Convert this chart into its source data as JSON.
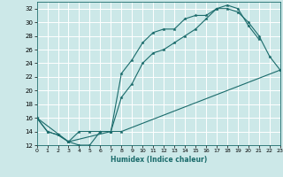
{
  "xlabel": "Humidex (Indice chaleur)",
  "bg_color": "#cce8e8",
  "grid_color": "#ffffff",
  "line_color": "#1a6b6b",
  "xlim": [
    0,
    23
  ],
  "ylim": [
    12,
    33
  ],
  "xticks": [
    0,
    1,
    2,
    3,
    4,
    5,
    6,
    7,
    8,
    9,
    10,
    11,
    12,
    13,
    14,
    15,
    16,
    17,
    18,
    19,
    20,
    21,
    22,
    23
  ],
  "yticks": [
    12,
    14,
    16,
    18,
    20,
    22,
    24,
    26,
    28,
    30,
    32
  ],
  "line1_x": [
    0,
    1,
    2,
    3,
    4,
    5,
    6,
    7,
    8,
    9,
    10,
    11,
    12,
    13,
    14,
    15,
    16,
    17,
    18,
    19,
    20,
    21,
    22,
    23
  ],
  "line1_y": [
    16,
    14,
    13.5,
    12.5,
    14,
    14,
    14,
    14,
    22.5,
    24.5,
    27,
    28.5,
    29,
    29,
    30.5,
    31,
    31,
    32,
    32,
    31.5,
    30,
    28,
    25,
    23
  ],
  "line2_x": [
    0,
    1,
    2,
    3,
    4,
    5,
    6,
    7,
    8,
    9,
    10,
    11,
    12,
    13,
    14,
    15,
    16,
    17,
    18,
    19,
    20,
    21
  ],
  "line2_y": [
    16,
    14,
    13.5,
    12.5,
    12,
    12,
    14,
    14,
    19,
    21,
    24,
    25.5,
    26,
    27,
    28,
    29,
    30.5,
    32,
    32.5,
    32,
    29.5,
    27.5
  ],
  "line3_x": [
    0,
    3,
    7,
    8,
    23
  ],
  "line3_y": [
    16,
    12.5,
    14,
    14,
    23
  ]
}
